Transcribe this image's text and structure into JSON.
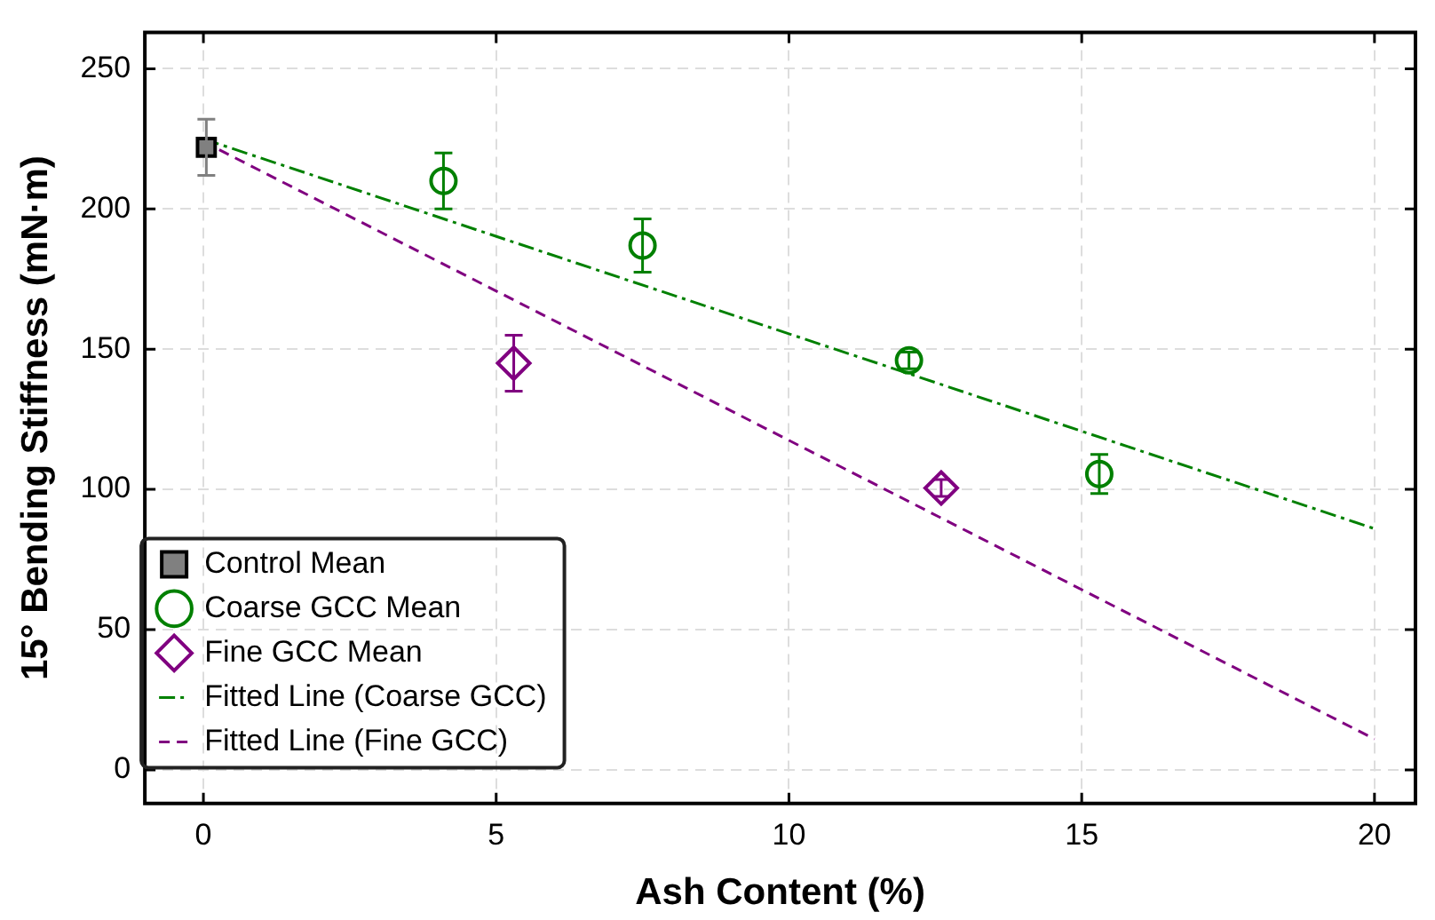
{
  "chart_data": {
    "type": "scatter",
    "xlabel": "Ash Content (%)",
    "ylabel": "15° Bending Stiffness (mN·m)",
    "xlim": [
      -1,
      20.7
    ],
    "ylim": [
      -12,
      263
    ],
    "xticks": [
      0,
      5,
      10,
      15,
      20
    ],
    "yticks": [
      0,
      50,
      100,
      150,
      200,
      250
    ],
    "grid": true,
    "legend": "bottom left",
    "series": [
      {
        "name": "Control Mean",
        "marker": "square",
        "color": "#808080",
        "x": [
          0.05
        ],
        "values": [
          222
        ],
        "errors": [
          10
        ]
      },
      {
        "name": "Coarse GCC Mean",
        "marker": "circle",
        "color": "#008000",
        "x": [
          4.1,
          7.5,
          12.05,
          15.3
        ],
        "values": [
          210,
          187,
          146,
          105.5
        ],
        "errors": [
          10,
          9.5,
          3,
          7
        ]
      },
      {
        "name": "Fine GCC Mean",
        "marker": "diamond",
        "color": "#800080",
        "x": [
          5.3,
          12.6
        ],
        "values": [
          145,
          100.5
        ],
        "errors": [
          10,
          3
        ]
      },
      {
        "name": "Fitted Line (Coarse GCC)",
        "type": "line",
        "marker": "none",
        "line_style": "dashdot",
        "color": "#008000",
        "x": [
          0,
          20
        ],
        "values": [
          225,
          86
        ]
      },
      {
        "name": "Fitted Line (Fine GCC)",
        "type": "line",
        "marker": "none",
        "line_style": "dashed",
        "color": "#800080",
        "x": [
          0,
          20
        ],
        "values": [
          224,
          11
        ]
      }
    ]
  }
}
